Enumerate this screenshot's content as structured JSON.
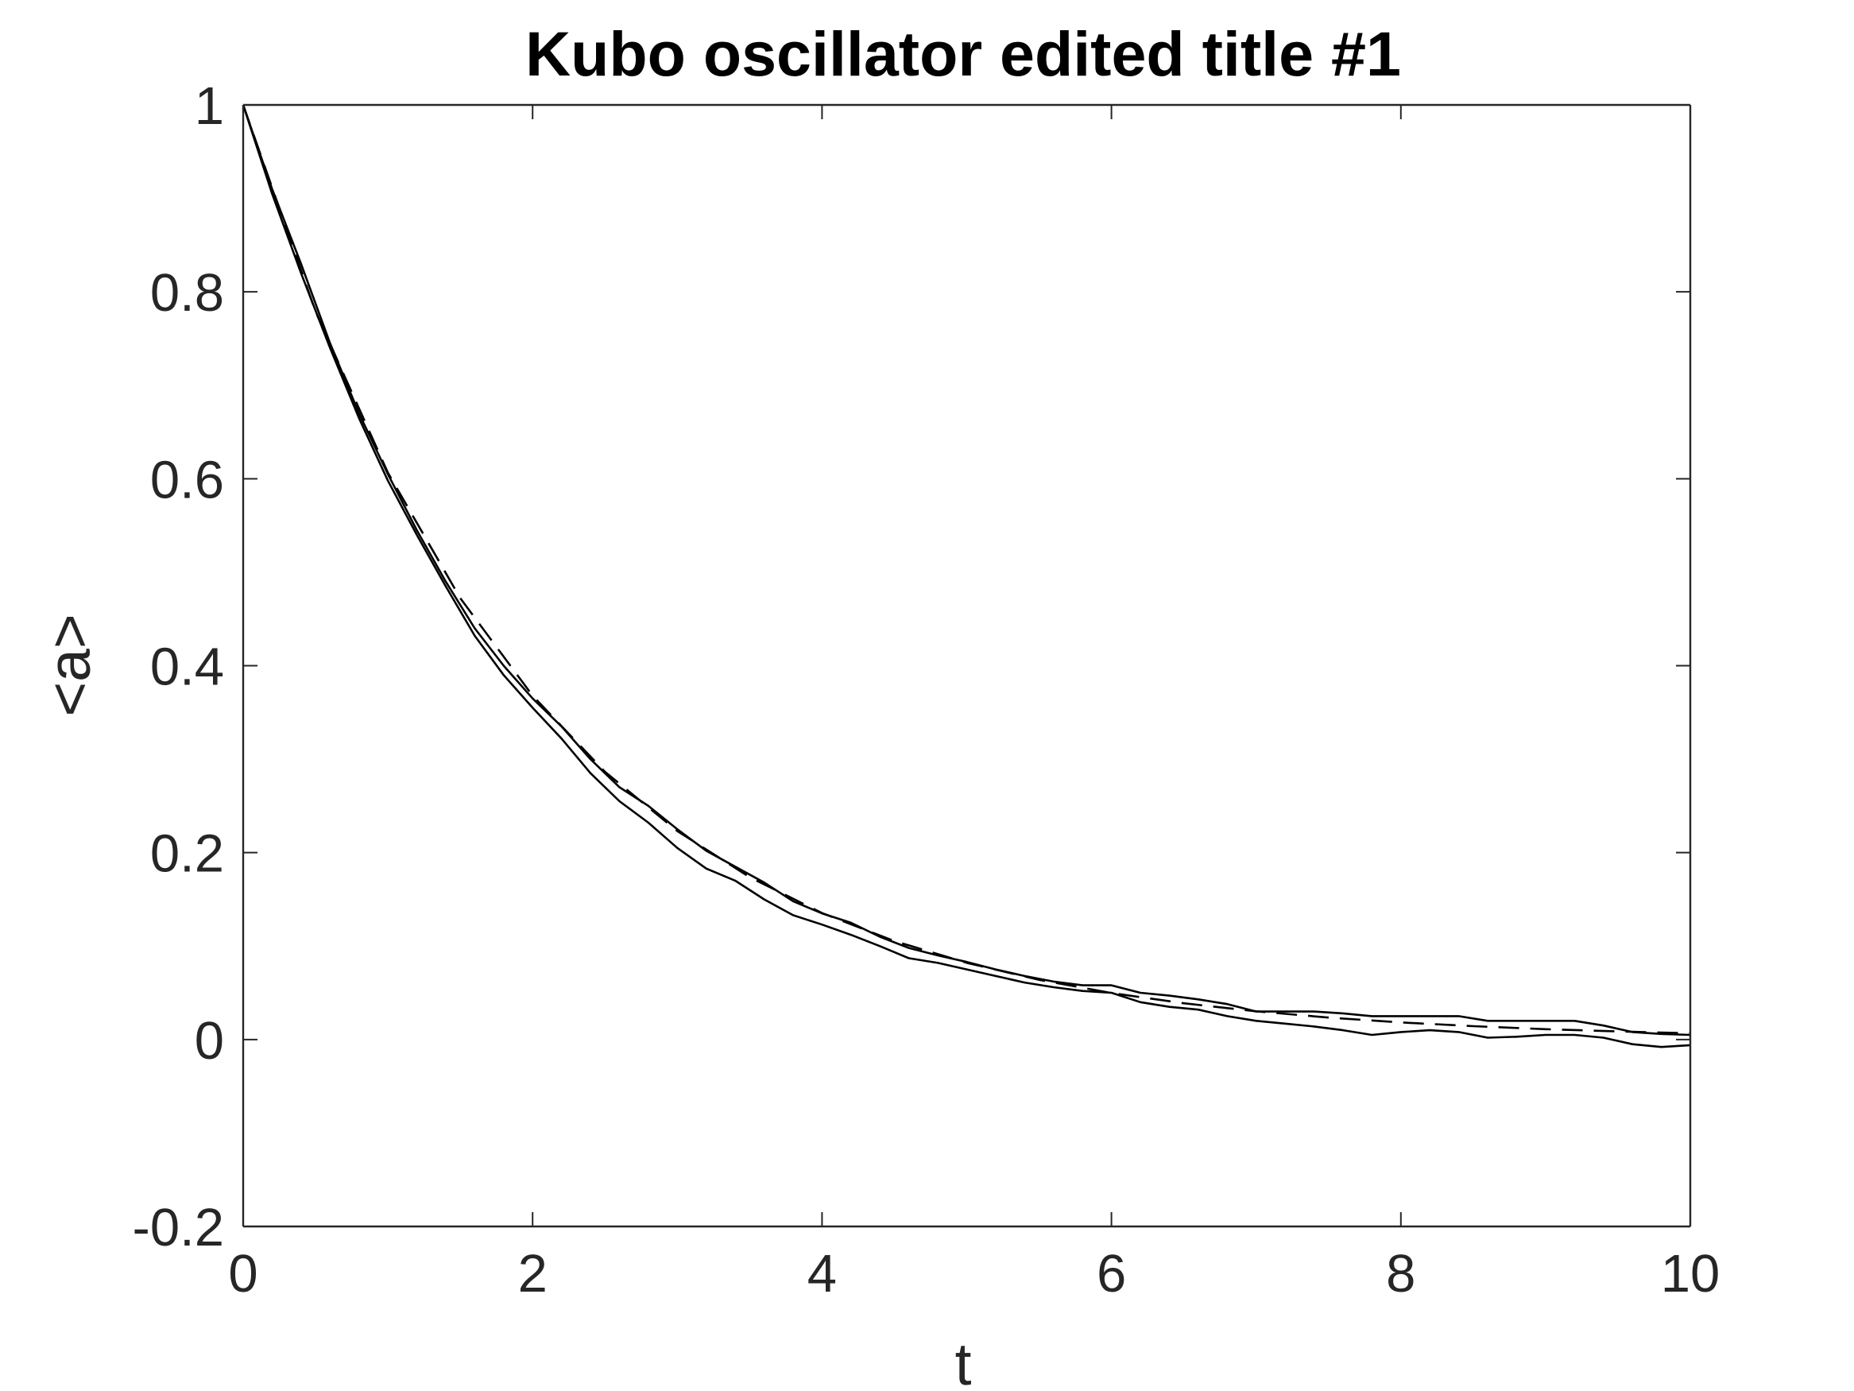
{
  "chart_data": {
    "type": "line",
    "title": "Kubo oscillator edited title #1",
    "xlabel": "t",
    "ylabel": "<a>",
    "xlim": [
      0,
      10
    ],
    "ylim": [
      -0.2,
      1
    ],
    "xticks": [
      0,
      2,
      4,
      6,
      8,
      10
    ],
    "xtick_labels": [
      "0",
      "2",
      "4",
      "6",
      "8",
      "10"
    ],
    "yticks": [
      -0.2,
      0,
      0.2,
      0.4,
      0.6,
      0.8,
      1
    ],
    "ytick_labels": [
      "-0.2",
      "0",
      "0.2",
      "0.4",
      "0.6",
      "0.8",
      "1"
    ],
    "grid": false,
    "box": true,
    "line_color": "#000000",
    "axis_color": "#262626",
    "series": [
      {
        "style": "solid",
        "x": [
          0,
          0.2,
          0.4,
          0.6,
          0.8,
          1.0,
          1.2,
          1.4,
          1.6,
          1.8,
          2.0,
          2.2,
          2.4,
          2.6,
          2.8,
          3.0,
          3.2,
          3.4,
          3.6,
          3.8,
          4.0,
          4.2,
          4.4,
          4.6,
          4.8,
          5.0,
          5.2,
          5.4,
          5.6,
          5.8,
          6.0,
          6.2,
          6.4,
          6.6,
          6.8,
          7.0,
          7.2,
          7.4,
          7.6,
          7.8,
          8.0,
          8.2,
          8.4,
          8.6,
          8.8,
          9.0,
          9.2,
          9.4,
          9.6,
          9.8,
          10.0
        ],
        "y": [
          1.0,
          0.91,
          0.83,
          0.745,
          0.67,
          0.605,
          0.545,
          0.49,
          0.44,
          0.4,
          0.365,
          0.335,
          0.3,
          0.27,
          0.25,
          0.225,
          0.202,
          0.185,
          0.168,
          0.148,
          0.135,
          0.125,
          0.11,
          0.098,
          0.09,
          0.083,
          0.075,
          0.068,
          0.062,
          0.058,
          0.058,
          0.05,
          0.047,
          0.043,
          0.038,
          0.03,
          0.03,
          0.03,
          0.028,
          0.025,
          0.025,
          0.025,
          0.025,
          0.02,
          0.02,
          0.02,
          0.02,
          0.015,
          0.008,
          0.006,
          0.005
        ]
      },
      {
        "style": "solid",
        "x": [
          0,
          0.2,
          0.4,
          0.6,
          0.8,
          1.0,
          1.2,
          1.4,
          1.6,
          1.8,
          2.0,
          2.2,
          2.4,
          2.6,
          2.8,
          3.0,
          3.2,
          3.4,
          3.6,
          3.8,
          4.0,
          4.2,
          4.4,
          4.6,
          4.8,
          5.0,
          5.2,
          5.4,
          5.6,
          5.8,
          6.0,
          6.2,
          6.4,
          6.6,
          6.8,
          7.0,
          7.2,
          7.4,
          7.6,
          7.8,
          8.0,
          8.2,
          8.4,
          8.6,
          8.8,
          9.0,
          9.2,
          9.4,
          9.6,
          9.8,
          10.0
        ],
        "y": [
          1.0,
          0.905,
          0.82,
          0.74,
          0.665,
          0.598,
          0.54,
          0.485,
          0.432,
          0.39,
          0.355,
          0.322,
          0.285,
          0.255,
          0.232,
          0.205,
          0.183,
          0.17,
          0.15,
          0.133,
          0.123,
          0.112,
          0.1,
          0.087,
          0.082,
          0.075,
          0.068,
          0.061,
          0.056,
          0.052,
          0.05,
          0.04,
          0.035,
          0.032,
          0.025,
          0.02,
          0.017,
          0.014,
          0.01,
          0.005,
          0.008,
          0.01,
          0.008,
          0.002,
          0.003,
          0.005,
          0.005,
          0.002,
          -0.005,
          -0.008,
          -0.006
        ]
      },
      {
        "style": "dashed",
        "x": [
          0,
          0.5,
          1.0,
          1.5,
          2.0,
          2.5,
          3.0,
          3.5,
          4.0,
          4.5,
          5.0,
          5.5,
          6.0,
          6.5,
          7.0,
          7.5,
          8.0,
          8.5,
          9.0,
          9.5,
          10.0
        ],
        "y": [
          1.0,
          0.7788,
          0.6065,
          0.4724,
          0.3679,
          0.2865,
          0.2231,
          0.1738,
          0.1353,
          0.1054,
          0.0821,
          0.0639,
          0.0498,
          0.0388,
          0.0302,
          0.0235,
          0.0183,
          0.0143,
          0.0111,
          0.0087,
          0.0067
        ]
      }
    ]
  }
}
